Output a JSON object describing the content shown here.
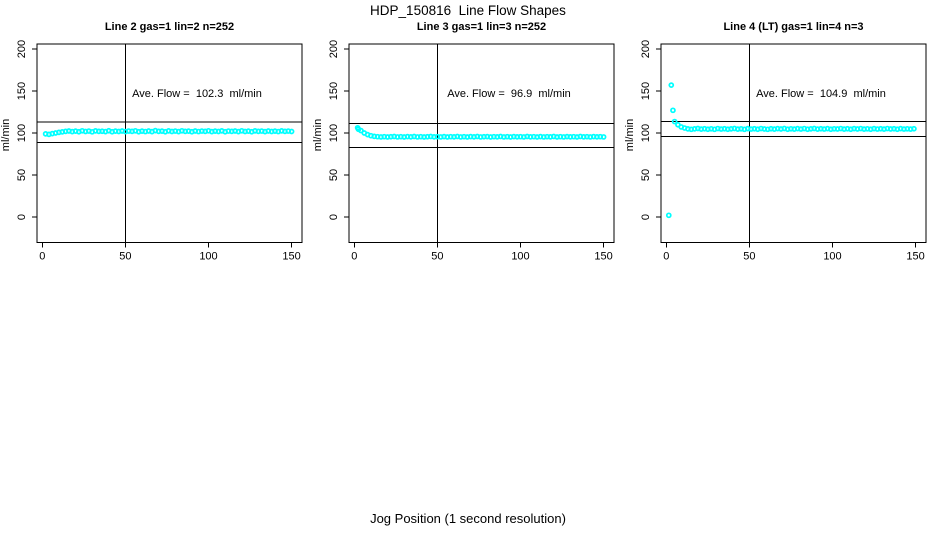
{
  "figure": {
    "title": "HDP_150816  Line Flow Shapes",
    "xlabel": "Jog Position (1 second resolution)",
    "background_color": "#ffffff",
    "point_color": "#00ffff",
    "axis_color": "#000000"
  },
  "chart_data": [
    {
      "type": "scatter",
      "title": "Line 2 gas=1 lin=2 n=252",
      "annotation": "Ave. Flow =  102.3  ml/min",
      "ave_flow_ml_min": 102.3,
      "ylabel": "ml/min",
      "x_ticks": [
        0,
        50,
        100,
        150
      ],
      "y_ticks": [
        0,
        50,
        100,
        150,
        200
      ],
      "xlim": [
        0,
        150
      ],
      "ylim": [
        0,
        200
      ],
      "grid": false,
      "legend": "none",
      "vline_x": 50,
      "hlines": [
        113,
        88.5
      ],
      "points": {
        "x0": 2,
        "dx": 2,
        "y": [
          99.0,
          98.4,
          99.3,
          100.0,
          100.7,
          101.3,
          101.9,
          102.4,
          101.6,
          102.2,
          101.5,
          102.6,
          101.8,
          102.3,
          101.4,
          102.5,
          101.9,
          102.1,
          101.6,
          102.7,
          101.5,
          102.2,
          101.8,
          102.4,
          101.6,
          102.3,
          101.9,
          102.6,
          101.5,
          102.2,
          101.7,
          102.4,
          101.6,
          102.8,
          101.9,
          102.2,
          101.5,
          102.5,
          101.8,
          102.3,
          101.6,
          102.6,
          101.9,
          102.2,
          101.5,
          102.4,
          101.7,
          102.3,
          101.9,
          102.6,
          101.6,
          102.2,
          101.8,
          102.5,
          101.5,
          102.3,
          101.9,
          102.4,
          101.6,
          102.6,
          101.8,
          102.2,
          101.5,
          102.5,
          101.9,
          102.3,
          101.6,
          102.4,
          101.8,
          102.2,
          101.7,
          102.5,
          101.9,
          102.3,
          101.8
        ]
      },
      "extra_points": []
    },
    {
      "type": "scatter",
      "title": "Line 3 gas=1 lin=3 n=252",
      "annotation": "Ave. Flow =  96.9  ml/min",
      "ave_flow_ml_min": 96.9,
      "ylabel": "ml/min",
      "x_ticks": [
        0,
        50,
        100,
        150
      ],
      "y_ticks": [
        0,
        50,
        100,
        150,
        200
      ],
      "xlim": [
        0,
        150
      ],
      "ylim": [
        0,
        200
      ],
      "grid": false,
      "legend": "none",
      "vline_x": 50,
      "hlines": [
        111.5,
        83
      ],
      "points": {
        "x0": 2,
        "dx": 2,
        "y": [
          106.2,
          102.9,
          100.0,
          98.1,
          96.8,
          96.0,
          95.6,
          95.3,
          95.6,
          95.2,
          95.5,
          95.8,
          95.3,
          95.6,
          95.2,
          95.7,
          95.4,
          95.8,
          95.3,
          95.6,
          95.2,
          95.5,
          95.8,
          95.4,
          95.6,
          95.3,
          95.7,
          95.2,
          95.6,
          95.4,
          95.8,
          95.3,
          95.6,
          95.2,
          95.7,
          95.4,
          95.8,
          95.3,
          95.5,
          95.7,
          95.2,
          95.6,
          95.4,
          95.8,
          95.3,
          95.6,
          95.2,
          95.7,
          95.4,
          95.6,
          95.3,
          95.8,
          95.4,
          95.6,
          95.2,
          95.7,
          95.3,
          95.6,
          95.4,
          95.8,
          95.2,
          95.6,
          95.3,
          95.7,
          95.4,
          95.6,
          95.2,
          95.8,
          95.4,
          95.6,
          95.3,
          95.7,
          95.4,
          95.6,
          95.3
        ]
      },
      "extra_points": [
        [
          2.5,
          104.5
        ]
      ]
    },
    {
      "type": "scatter",
      "title": "Line 4 (LT) gas=1 lin=4 n=3",
      "annotation": "Ave. Flow =  104.9  ml/min",
      "ave_flow_ml_min": 104.9,
      "ylabel": "ml/min",
      "x_ticks": [
        0,
        50,
        100,
        150
      ],
      "y_ticks": [
        0,
        50,
        100,
        150,
        200
      ],
      "xlim": [
        0,
        150
      ],
      "ylim": [
        0,
        200
      ],
      "grid": false,
      "legend": "none",
      "vline_x": 50,
      "hlines": [
        113.5,
        96
      ],
      "points": {
        "x0": 5,
        "dx": 2,
        "y": [
          113.6,
          109.8,
          107.2,
          105.9,
          104.9,
          104.4,
          104.9,
          105.4,
          104.6,
          105.1,
          104.5,
          105.0,
          104.4,
          105.3,
          104.7,
          105.1,
          104.5,
          104.9,
          105.4,
          104.6,
          105.0,
          104.4,
          105.2,
          104.7,
          105.1,
          104.5,
          105.3,
          104.8,
          104.4,
          105.1,
          104.6,
          105.2,
          104.8,
          105.4,
          104.5,
          105.0,
          104.6,
          105.2,
          104.7,
          105.3,
          104.5,
          104.9,
          105.4,
          104.6,
          105.1,
          104.7,
          105.2,
          104.5,
          105.0,
          104.8,
          105.3,
          104.6,
          105.1,
          104.5,
          105.2,
          104.8,
          105.3,
          104.6,
          105.0,
          104.5,
          105.2,
          104.7,
          105.1,
          104.6,
          105.3,
          104.8,
          105.1,
          104.5,
          105.2,
          104.7,
          105.0,
          104.6,
          105.1
        ]
      },
      "extra_points": [
        [
          3,
          157
        ],
        [
          4,
          127
        ],
        [
          1.5,
          2
        ]
      ]
    }
  ]
}
